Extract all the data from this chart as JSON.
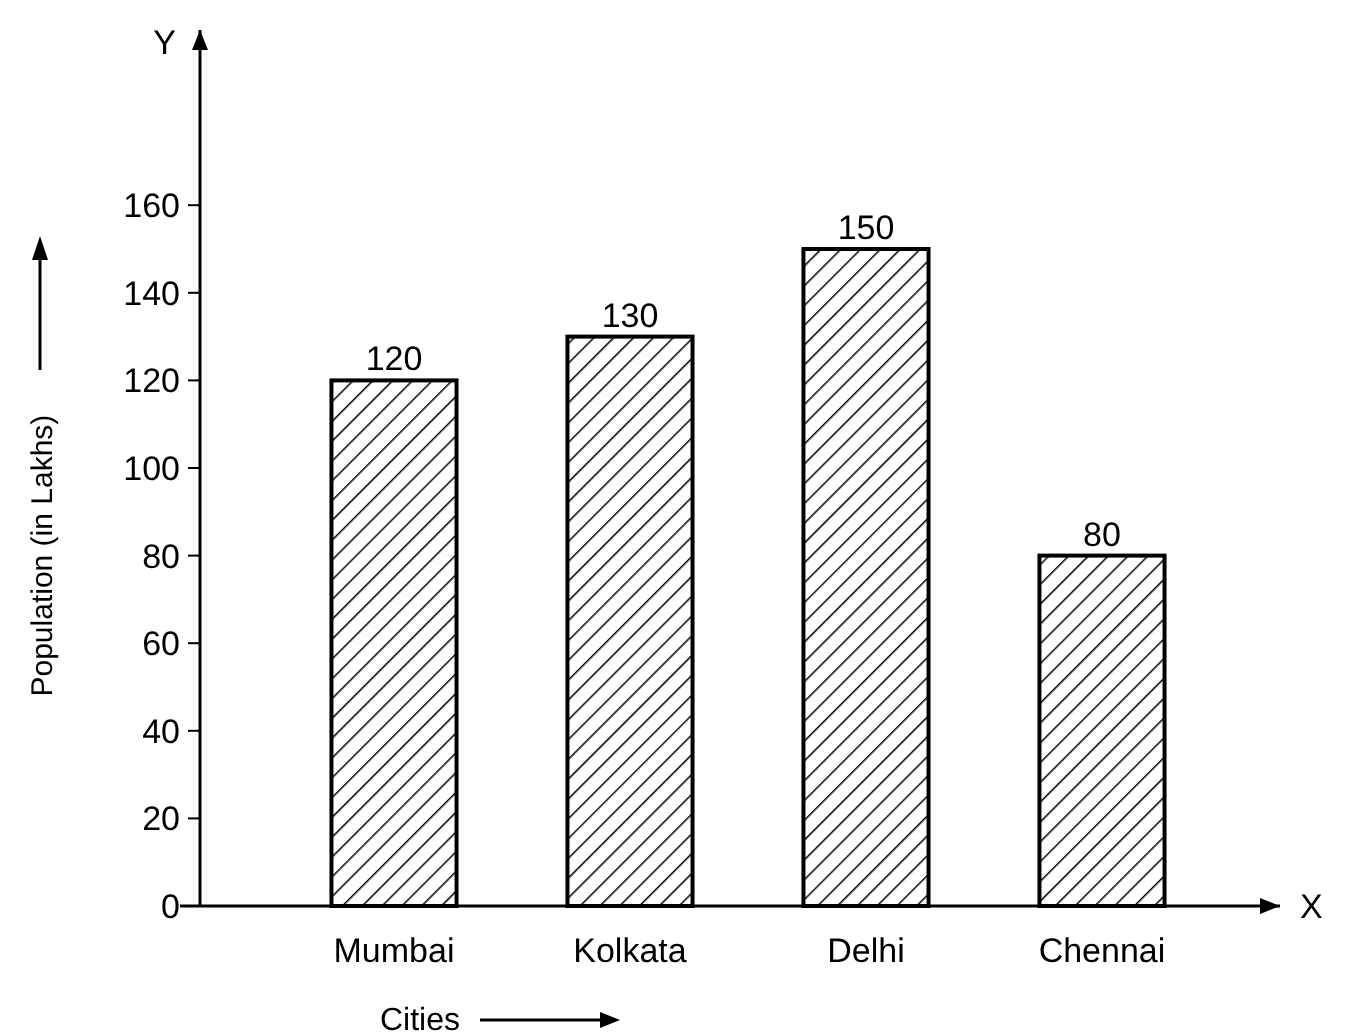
{
  "chart_data": {
    "type": "bar",
    "categories": [
      "Mumbai",
      "Kolkata",
      "Delhi",
      "Chennai"
    ],
    "values": [
      120,
      130,
      150,
      80
    ],
    "color": "#000000",
    "xlabel": "Cities",
    "ylabel": "Population (in Lakhs)",
    "annotations": [
      "Y",
      "X"
    ],
    "ylim": [
      0,
      200
    ],
    "yticks": [
      0,
      20,
      40,
      60,
      80,
      100,
      120,
      140,
      160
    ],
    "data_labels": true,
    "grid": false
  }
}
